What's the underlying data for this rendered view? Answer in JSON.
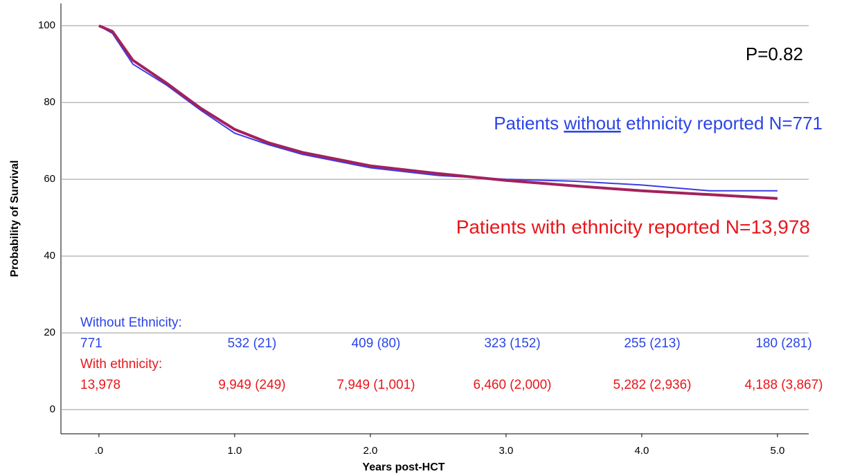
{
  "chart_data": {
    "type": "line",
    "x_label": "Years post-HCT",
    "y_label": "Probability of Survival",
    "x": [
      0,
      0.1,
      0.25,
      0.5,
      0.75,
      1,
      1.25,
      1.5,
      2,
      2.5,
      3,
      3.5,
      4,
      4.5,
      5
    ],
    "series": [
      {
        "name": "Patients without ethnicity reported N=771",
        "color": "#3b3be6",
        "values": [
          100,
          98,
          90,
          84.5,
          78,
          72,
          69,
          66.5,
          63,
          61,
          60,
          59.5,
          58.5,
          57,
          57
        ]
      },
      {
        "name": "Patients with ethnicity reported N=13,978",
        "color": "#a3215c",
        "values": [
          100,
          98.5,
          91,
          85,
          78.5,
          73,
          69.5,
          67,
          63.5,
          61.5,
          59.7,
          58.3,
          57,
          56,
          55
        ]
      }
    ],
    "xlim": [
      -0.28,
      5.23
    ],
    "ylim": [
      -6.3,
      105.8
    ],
    "xticks": [
      {
        "value": 0,
        "label": ".0"
      },
      {
        "value": 1,
        "label": "1.0"
      },
      {
        "value": 2,
        "label": "2.0"
      },
      {
        "value": 3,
        "label": "3.0"
      },
      {
        "value": 4,
        "label": "4.0"
      },
      {
        "value": 5,
        "label": "5.0"
      }
    ],
    "yticks": [
      0,
      20,
      40,
      60,
      80,
      100
    ],
    "grid": true,
    "annotations": {
      "p_value": "P=0.82",
      "without_label": {
        "color": "#2b44e8",
        "parts": [
          "Patients ",
          "without",
          " ethnicity reported N=771"
        ]
      },
      "with_label": {
        "color": "#e8161b",
        "text": "Patients with ethnicity reported N=13,978"
      }
    },
    "risk_table": [
      {
        "label": "Without Ethnicity:",
        "color": "#2b44e8",
        "values": [
          "771",
          "532 (21)",
          "409 (80)",
          "323 (152)",
          "255 (213)",
          "180 (281)"
        ]
      },
      {
        "label": "With ethnicity:",
        "color": "#e8161b",
        "values": [
          "13,978",
          "9,949 (249)",
          "7,949 (1,001)",
          "6,460 (2,000)",
          "5,282 (2,936)",
          "4,188 (3,867)"
        ]
      }
    ]
  }
}
